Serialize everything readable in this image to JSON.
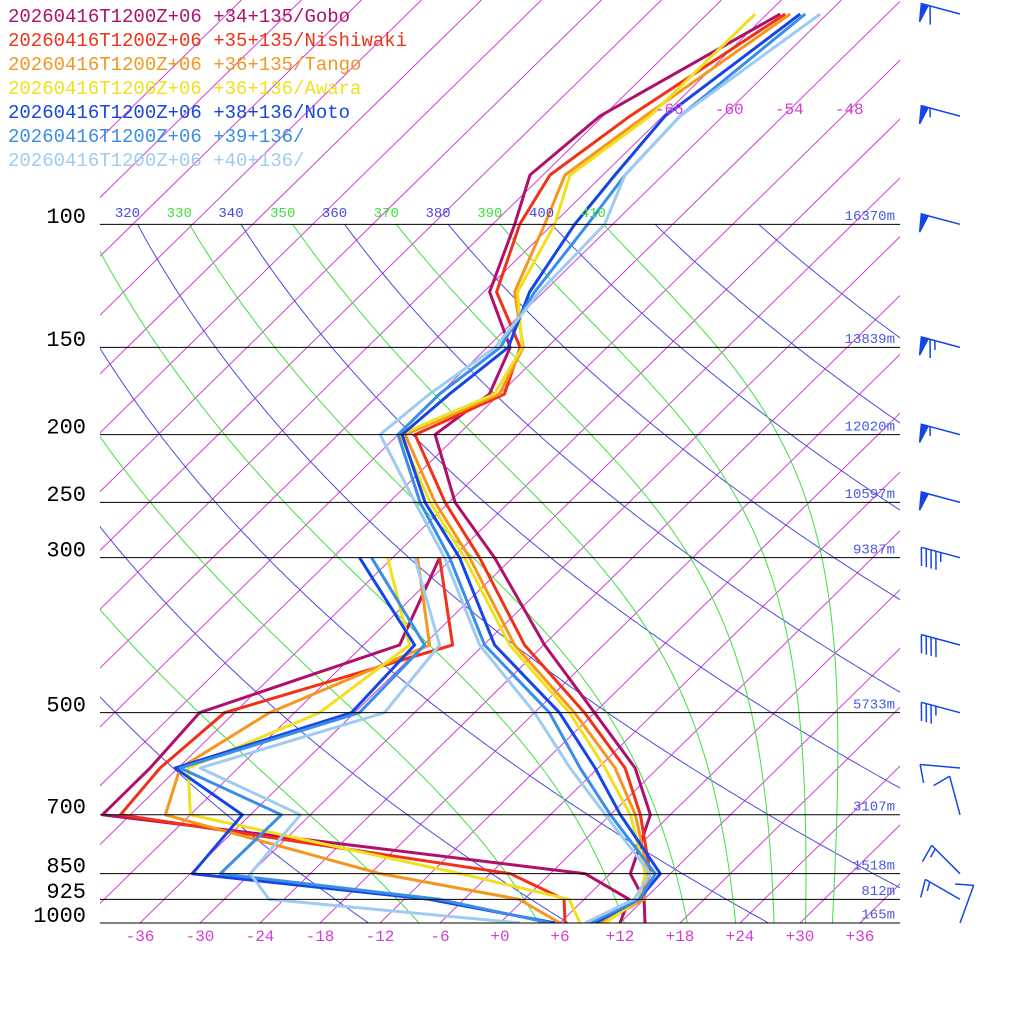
{
  "chart_data": {
    "type": "skewt",
    "ylim": [
      1000,
      50
    ],
    "log_scale": true,
    "yticks": [
      100,
      150,
      200,
      250,
      300,
      500,
      700,
      850,
      925,
      1000
    ],
    "height_labels": [
      "16370m",
      "13839m",
      "12020m",
      "10597m",
      "9387m",
      "5733m",
      "3107m",
      "1518m",
      "812m",
      "165m"
    ],
    "xlim": [
      -40,
      40
    ],
    "xticks": [
      -36,
      -30,
      -24,
      -18,
      -12,
      -6,
      {
        "value": 0,
        "label": "+0"
      },
      {
        "value": 6,
        "label": "+6"
      },
      {
        "value": 12,
        "label": "+12"
      },
      {
        "value": 18,
        "label": "+18"
      },
      {
        "value": 24,
        "label": "+24"
      },
      {
        "value": 30,
        "label": "+30"
      },
      {
        "value": 36,
        "label": "+36"
      }
    ],
    "isotherms": [
      -120,
      -114,
      -108,
      -102,
      -96,
      -90,
      -84,
      -78,
      -72,
      -66,
      -60,
      -54,
      -48,
      -42,
      -36,
      -30,
      -24,
      -18,
      -12,
      -6,
      0,
      6,
      12,
      18,
      24,
      30,
      36
    ],
    "isotherm_labels": [
      -66,
      -60,
      -54,
      -48
    ],
    "dry_adiabats": [
      260,
      280,
      300,
      320,
      340,
      360,
      380,
      400,
      420,
      440
    ],
    "moist_adiabats": [
      270,
      290,
      310,
      330,
      350,
      370,
      390,
      410
    ],
    "theta_labels": [
      320,
      330,
      340,
      350,
      360,
      370,
      380,
      390,
      400,
      410
    ],
    "pressure": [
      1000,
      925,
      850,
      700,
      600,
      500,
      400,
      300,
      250,
      200,
      175,
      150,
      125,
      100,
      85,
      70,
      50
    ],
    "series": [
      {
        "name": "20260416T1200Z+06 +34+135/Gobo",
        "color": "#b0106a",
        "temperature": [
          14.5,
          12,
          8,
          4,
          -2.3,
          -12,
          -23.9,
          -37.8,
          -47.4,
          -56.3,
          -55,
          -57.7,
          -65.4,
          -69.8,
          -73.3,
          -72.3,
          -64.7
        ],
        "dewpoint": [
          12,
          10.5,
          3.5,
          -50.8,
          -50.8,
          -51.5,
          -38.4,
          -43.3,
          null,
          null,
          null,
          null,
          null,
          null,
          null,
          null,
          null
        ]
      },
      {
        "name": "20260416T1200Z+06 +35+135/Nishiwaki",
        "color": "#f03218",
        "temperature": [
          10.5,
          11.5,
          10,
          3,
          -3.3,
          -13,
          -25.9,
          -39.3,
          -48.4,
          -58.3,
          -53.5,
          -56.7,
          -64.7,
          -69.3,
          -71.3,
          -69.3,
          -64.2
        ],
        "dewpoint": [
          6.5,
          4,
          -4,
          -49,
          -49.8,
          -49,
          -33.1,
          -43.3,
          null,
          null,
          null,
          null,
          null,
          null,
          null,
          null,
          null
        ]
      },
      {
        "name": "20260416T1200Z+06 +36+135/Tango",
        "color": "#f5961e",
        "temperature": [
          10,
          12,
          9.8,
          2.5,
          -4.3,
          -14,
          -26.9,
          -40.3,
          -49.4,
          -59.3,
          -54,
          -56.4,
          -62.9,
          -66.8,
          -69.8,
          -67.8,
          -63.7
        ],
        "dewpoint": [
          6,
          -0.5,
          -17,
          -44.5,
          -47.8,
          -44.5,
          -35.4,
          -45.5,
          null,
          null,
          null,
          null,
          null,
          null,
          null,
          null,
          null
        ]
      },
      {
        "name": "20260416T1200Z+06 +36+136/Awara",
        "color": "#f0e01e",
        "temperature": [
          10.5,
          11.5,
          9.5,
          2,
          -5.3,
          -14.5,
          -27.4,
          -40.8,
          -49.9,
          -59.8,
          -54.5,
          -56.5,
          -62.6,
          -65.8,
          -69.3,
          -67.3,
          -67.2
        ],
        "dewpoint": [
          8,
          4.5,
          -9,
          -42,
          -47,
          -39.5,
          -37.4,
          -48.5,
          null,
          null,
          null,
          null,
          null,
          null,
          null,
          null,
          null
        ]
      },
      {
        "name": "20260416T1200Z+06 +38+136/Noto",
        "color": "#1446e6",
        "temperature": [
          9.5,
          11.5,
          11,
          1,
          -6.3,
          -15.5,
          -28.9,
          -41.3,
          -50.4,
          -59.6,
          -59,
          -57.9,
          -61.4,
          -63.8,
          -64.8,
          -65.8,
          -62.7
        ],
        "dewpoint": [
          5.5,
          -9.5,
          -35.8,
          -36.8,
          -48.3,
          -36.3,
          -36.9,
          -51.3,
          null,
          null,
          null,
          null,
          null,
          null,
          null,
          null,
          null
        ]
      },
      {
        "name": "20260416T1200Z+06 +39+136/",
        "color": "#3a8ee6",
        "temperature": [
          9,
          11.5,
          10.5,
          0,
          -7.8,
          -16.5,
          -29.9,
          -42.3,
          -50.9,
          -60,
          -60,
          -58.7,
          -60.9,
          -62.5,
          -63.8,
          -64.3,
          -62.2
        ],
        "dewpoint": [
          5,
          -8.5,
          -33,
          -32.9,
          -47.8,
          -35.5,
          -35.9,
          -50.1,
          null,
          null,
          null,
          null,
          null,
          null,
          null,
          null,
          null
        ]
      },
      {
        "name": "20260416T1200Z+06 +40+136/",
        "color": "#9ecbf2",
        "temperature": [
          8.5,
          11,
          10,
          -0.5,
          -8.8,
          -18,
          -30.4,
          -42.8,
          -51.4,
          -61.8,
          -61,
          -59.2,
          -60.4,
          -60.8,
          -63.8,
          -64.3,
          -60.7
        ],
        "dewpoint": [
          2,
          -25.5,
          -30,
          -31,
          -45.8,
          -33,
          -34.4,
          -45.8,
          null,
          null,
          null,
          null,
          null,
          null,
          null,
          null,
          null
        ]
      }
    ],
    "winds": [
      {
        "pressure": 50,
        "direction": 285,
        "speed": 60
      },
      {
        "pressure": 70,
        "direction": 285,
        "speed": 55
      },
      {
        "pressure": 100,
        "direction": 285,
        "speed": 50
      },
      {
        "pressure": 150,
        "direction": 285,
        "speed": 65
      },
      {
        "pressure": 200,
        "direction": 285,
        "speed": 55
      },
      {
        "pressure": 250,
        "direction": 285,
        "speed": 50
      },
      {
        "pressure": 300,
        "direction": 285,
        "speed": 45
      },
      {
        "pressure": 400,
        "direction": 285,
        "speed": 40
      },
      {
        "pressure": 500,
        "direction": 285,
        "speed": 35
      },
      {
        "pressure": 600,
        "direction": 275,
        "speed": 10
      },
      {
        "pressure": 700,
        "direction": 345,
        "speed": 10
      },
      {
        "pressure": 850,
        "direction": 315,
        "speed": 15
      },
      {
        "pressure": 925,
        "direction": 300,
        "speed": 15
      },
      {
        "pressure": 1000,
        "direction": 20,
        "speed": 10
      }
    ],
    "wind_color": "#1446e6",
    "isotherm_color": "#d040d0",
    "dry_adiabat_color": "#4a4ae0",
    "moist_adiabat_color": "#40e040",
    "height_label_color": "#4a5ae0"
  }
}
